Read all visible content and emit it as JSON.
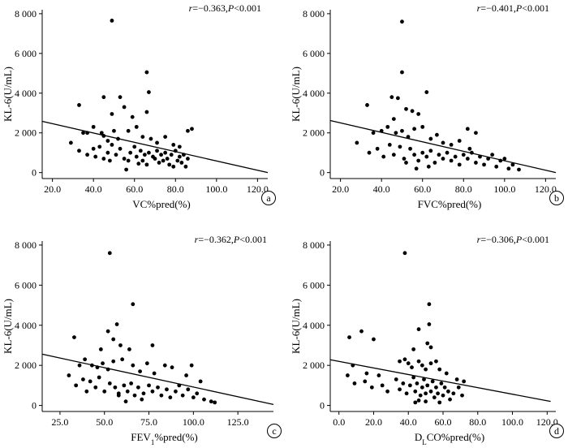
{
  "chart_data": [
    {
      "type": "scatter",
      "panel_label": "a",
      "xlabel": "VC%pred(%)",
      "xlabel_sub": "",
      "xlabel_rest": "",
      "ylabel": "KL-6(U/mL)",
      "stat": {
        "r_label": "r",
        "r_value": "=−0.363,",
        "p_label": "P",
        "p_value": "<0.001"
      },
      "xlim": [
        15,
        125
      ],
      "ylim": [
        -300,
        8200
      ],
      "xticks": [
        20,
        40,
        60,
        80,
        100,
        120
      ],
      "xtick_labels": [
        "20.0",
        "40.0",
        "60.0",
        "80.0",
        "100.0",
        "120.0"
      ],
      "yticks": [
        0,
        2000,
        4000,
        6000,
        8000
      ],
      "ytick_labels": [
        "0",
        "2 000",
        "4 000",
        "6 000",
        "8 000"
      ],
      "fit_line": {
        "x": [
          15,
          125
        ],
        "y": [
          2580,
          0
        ]
      },
      "points": [
        [
          49,
          7650
        ],
        [
          66,
          5050
        ],
        [
          67,
          4050
        ],
        [
          33,
          3400
        ],
        [
          45,
          3800
        ],
        [
          53,
          3800
        ],
        [
          55,
          3300
        ],
        [
          49,
          2950
        ],
        [
          66,
          3050
        ],
        [
          59,
          2800
        ],
        [
          35,
          2000
        ],
        [
          37,
          2000
        ],
        [
          40,
          2300
        ],
        [
          44,
          2000
        ],
        [
          45,
          1850
        ],
        [
          47,
          1600
        ],
        [
          50,
          2100
        ],
        [
          52,
          1700
        ],
        [
          57,
          2100
        ],
        [
          61,
          2300
        ],
        [
          64,
          1800
        ],
        [
          68,
          1700
        ],
        [
          71,
          1500
        ],
        [
          75,
          1800
        ],
        [
          79,
          1400
        ],
        [
          82,
          1300
        ],
        [
          86,
          2100
        ],
        [
          88,
          2200
        ],
        [
          29,
          1500
        ],
        [
          33,
          1100
        ],
        [
          37,
          900
        ],
        [
          40,
          1200
        ],
        [
          41,
          800
        ],
        [
          43,
          1300
        ],
        [
          45,
          700
        ],
        [
          47,
          1000
        ],
        [
          49,
          1400
        ],
        [
          51,
          900
        ],
        [
          53,
          1200
        ],
        [
          55,
          700
        ],
        [
          57,
          600
        ],
        [
          58,
          1000
        ],
        [
          60,
          1300
        ],
        [
          61,
          800
        ],
        [
          63,
          1100
        ],
        [
          64,
          600
        ],
        [
          65,
          900
        ],
        [
          66,
          400
        ],
        [
          67,
          1000
        ],
        [
          69,
          800
        ],
        [
          70,
          700
        ],
        [
          71,
          1100
        ],
        [
          72,
          500
        ],
        [
          73,
          900
        ],
        [
          74,
          600
        ],
        [
          75,
          1000
        ],
        [
          76,
          700
        ],
        [
          77,
          400
        ],
        [
          78,
          900
        ],
        [
          79,
          300
        ],
        [
          80,
          1100
        ],
        [
          81,
          600
        ],
        [
          82,
          800
        ],
        [
          83,
          500
        ],
        [
          84,
          900
        ],
        [
          85,
          300
        ],
        [
          86,
          700
        ],
        [
          56,
          150
        ],
        [
          62,
          450
        ],
        [
          48,
          600
        ]
      ]
    },
    {
      "type": "scatter",
      "panel_label": "b",
      "xlabel": "FVC%pred(%)",
      "xlabel_sub": "",
      "xlabel_rest": "",
      "ylabel": "KL-6(U/mL)",
      "stat": {
        "r_label": "r",
        "r_value": "=−0.401,",
        "p_label": "P",
        "p_value": "<0.001"
      },
      "xlim": [
        15,
        125
      ],
      "ylim": [
        -300,
        8200
      ],
      "xticks": [
        20,
        40,
        60,
        80,
        100,
        120
      ],
      "xtick_labels": [
        "20.0",
        "40.0",
        "60.0",
        "80.0",
        "100.0",
        "120.0"
      ],
      "yticks": [
        0,
        2000,
        4000,
        6000,
        8000
      ],
      "ytick_labels": [
        "0",
        "2 000",
        "4 000",
        "6 000",
        "8 000"
      ],
      "fit_line": {
        "x": [
          15,
          125
        ],
        "y": [
          2620,
          0
        ]
      },
      "points": [
        [
          50,
          7600
        ],
        [
          50,
          5050
        ],
        [
          62,
          4050
        ],
        [
          33,
          3400
        ],
        [
          45,
          3800
        ],
        [
          48,
          3750
        ],
        [
          52,
          3200
        ],
        [
          55,
          3100
        ],
        [
          58,
          2950
        ],
        [
          46,
          2700
        ],
        [
          36,
          2000
        ],
        [
          40,
          2100
        ],
        [
          43,
          2300
        ],
        [
          47,
          2000
        ],
        [
          50,
          2100
        ],
        [
          53,
          1800
        ],
        [
          56,
          2200
        ],
        [
          60,
          2300
        ],
        [
          64,
          1700
        ],
        [
          67,
          1900
        ],
        [
          70,
          1500
        ],
        [
          74,
          1400
        ],
        [
          78,
          1600
        ],
        [
          82,
          2200
        ],
        [
          86,
          2000
        ],
        [
          28,
          1500
        ],
        [
          34,
          1000
        ],
        [
          38,
          1200
        ],
        [
          41,
          800
        ],
        [
          44,
          1400
        ],
        [
          46,
          900
        ],
        [
          49,
          1300
        ],
        [
          51,
          700
        ],
        [
          54,
          1200
        ],
        [
          56,
          900
        ],
        [
          58,
          600
        ],
        [
          60,
          1000
        ],
        [
          62,
          800
        ],
        [
          64,
          1100
        ],
        [
          66,
          500
        ],
        [
          68,
          900
        ],
        [
          70,
          700
        ],
        [
          72,
          1000
        ],
        [
          74,
          600
        ],
        [
          76,
          800
        ],
        [
          78,
          400
        ],
        [
          80,
          900
        ],
        [
          82,
          700
        ],
        [
          84,
          1000
        ],
        [
          86,
          500
        ],
        [
          88,
          800
        ],
        [
          90,
          400
        ],
        [
          92,
          700
        ],
        [
          94,
          900
        ],
        [
          96,
          300
        ],
        [
          98,
          600
        ],
        [
          100,
          700
        ],
        [
          102,
          200
        ],
        [
          104,
          400
        ],
        [
          107,
          150
        ],
        [
          63,
          300
        ],
        [
          57,
          200
        ],
        [
          83,
          1200
        ],
        [
          52,
          500
        ]
      ]
    },
    {
      "type": "scatter",
      "panel_label": "c",
      "xlabel": "FEV",
      "xlabel_sub": "1",
      "xlabel_rest": "%pred(%)",
      "ylabel": "KL-6(U/mL)",
      "stat": {
        "r_label": "r",
        "r_value": "=−0.362,",
        "p_label": "P",
        "p_value": "<0.001"
      },
      "xlim": [
        15,
        145
      ],
      "ylim": [
        -300,
        8200
      ],
      "xticks": [
        25,
        50,
        75,
        100,
        125
      ],
      "xtick_labels": [
        "25.0",
        "50.0",
        "75.0",
        "100.0",
        "125.0"
      ],
      "yticks": [
        0,
        2000,
        4000,
        6000,
        8000
      ],
      "ytick_labels": [
        "0",
        "2 000",
        "4 000",
        "6 000",
        "8 000"
      ],
      "fit_line": {
        "x": [
          15,
          145
        ],
        "y": [
          2560,
          50
        ]
      },
      "points": [
        [
          53,
          7600
        ],
        [
          66,
          5050
        ],
        [
          57,
          4050
        ],
        [
          33,
          3400
        ],
        [
          52,
          3700
        ],
        [
          55,
          3300
        ],
        [
          59,
          3000
        ],
        [
          64,
          2800
        ],
        [
          77,
          3000
        ],
        [
          48,
          2800
        ],
        [
          36,
          2000
        ],
        [
          39,
          2300
        ],
        [
          43,
          2000
        ],
        [
          46,
          1900
        ],
        [
          49,
          2100
        ],
        [
          52,
          1800
        ],
        [
          55,
          2200
        ],
        [
          60,
          2300
        ],
        [
          66,
          2000
        ],
        [
          70,
          1700
        ],
        [
          74,
          2100
        ],
        [
          78,
          1600
        ],
        [
          84,
          2000
        ],
        [
          88,
          1900
        ],
        [
          96,
          1500
        ],
        [
          99,
          2000
        ],
        [
          30,
          1500
        ],
        [
          34,
          1000
        ],
        [
          38,
          1300
        ],
        [
          40,
          700
        ],
        [
          42,
          1200
        ],
        [
          45,
          900
        ],
        [
          47,
          1400
        ],
        [
          50,
          700
        ],
        [
          53,
          1100
        ],
        [
          56,
          900
        ],
        [
          58,
          600
        ],
        [
          61,
          1000
        ],
        [
          63,
          700
        ],
        [
          65,
          1100
        ],
        [
          67,
          500
        ],
        [
          69,
          900
        ],
        [
          72,
          600
        ],
        [
          75,
          1000
        ],
        [
          77,
          700
        ],
        [
          80,
          900
        ],
        [
          82,
          500
        ],
        [
          85,
          800
        ],
        [
          87,
          400
        ],
        [
          90,
          700
        ],
        [
          92,
          1000
        ],
        [
          94,
          500
        ],
        [
          97,
          800
        ],
        [
          100,
          400
        ],
        [
          102,
          600
        ],
        [
          104,
          1200
        ],
        [
          106,
          300
        ],
        [
          110,
          200
        ],
        [
          112,
          150
        ],
        [
          62,
          200
        ],
        [
          71,
          300
        ],
        [
          58,
          500
        ]
      ]
    },
    {
      "type": "scatter",
      "panel_label": "d",
      "xlabel": "D",
      "xlabel_sub": "L",
      "xlabel_rest": "CO%pred(%)",
      "ylabel": "KL-6(U/mL)",
      "stat": {
        "r_label": "r",
        "r_value": "=−0.306,",
        "p_label": "P",
        "p_value": "<0.001"
      },
      "xlim": [
        -5,
        125
      ],
      "ylim": [
        -300,
        8200
      ],
      "xticks": [
        0,
        20,
        40,
        60,
        80,
        100,
        120
      ],
      "xtick_labels": [
        "0.0",
        "20.0",
        "40.0",
        "60.0",
        "80.0",
        "100.0",
        "120.0"
      ],
      "yticks": [
        0,
        2000,
        4000,
        6000,
        8000
      ],
      "ytick_labels": [
        "0",
        "2 000",
        "4 000",
        "6 000",
        "8 000"
      ],
      "fit_line": {
        "x": [
          -5,
          122
        ],
        "y": [
          2280,
          200
        ]
      },
      "points": [
        [
          38,
          7600
        ],
        [
          52,
          5050
        ],
        [
          52,
          4050
        ],
        [
          6,
          3400
        ],
        [
          13,
          3700
        ],
        [
          20,
          3300
        ],
        [
          46,
          3800
        ],
        [
          51,
          3100
        ],
        [
          53,
          2900
        ],
        [
          43,
          2800
        ],
        [
          8,
          2000
        ],
        [
          16,
          1600
        ],
        [
          23,
          1500
        ],
        [
          35,
          2200
        ],
        [
          38,
          2300
        ],
        [
          40,
          2100
        ],
        [
          42,
          1900
        ],
        [
          46,
          2200
        ],
        [
          48,
          2000
        ],
        [
          50,
          1800
        ],
        [
          53,
          2100
        ],
        [
          56,
          2200
        ],
        [
          58,
          1800
        ],
        [
          62,
          1600
        ],
        [
          68,
          1300
        ],
        [
          72,
          1200
        ],
        [
          5,
          1500
        ],
        [
          9,
          1100
        ],
        [
          15,
          1200
        ],
        [
          19,
          900
        ],
        [
          25,
          1000
        ],
        [
          28,
          700
        ],
        [
          33,
          1300
        ],
        [
          35,
          800
        ],
        [
          37,
          1100
        ],
        [
          39,
          600
        ],
        [
          41,
          1000
        ],
        [
          43,
          1400
        ],
        [
          44,
          700
        ],
        [
          45,
          1100
        ],
        [
          47,
          500
        ],
        [
          48,
          900
        ],
        [
          49,
          1300
        ],
        [
          50,
          600
        ],
        [
          51,
          1000
        ],
        [
          53,
          700
        ],
        [
          54,
          1200
        ],
        [
          55,
          400
        ],
        [
          56,
          900
        ],
        [
          57,
          600
        ],
        [
          59,
          1100
        ],
        [
          60,
          500
        ],
        [
          61,
          900
        ],
        [
          63,
          700
        ],
        [
          64,
          300
        ],
        [
          66,
          600
        ],
        [
          69,
          900
        ],
        [
          71,
          500
        ],
        [
          44,
          150
        ],
        [
          46,
          250
        ],
        [
          50,
          200
        ],
        [
          58,
          150
        ]
      ]
    }
  ]
}
